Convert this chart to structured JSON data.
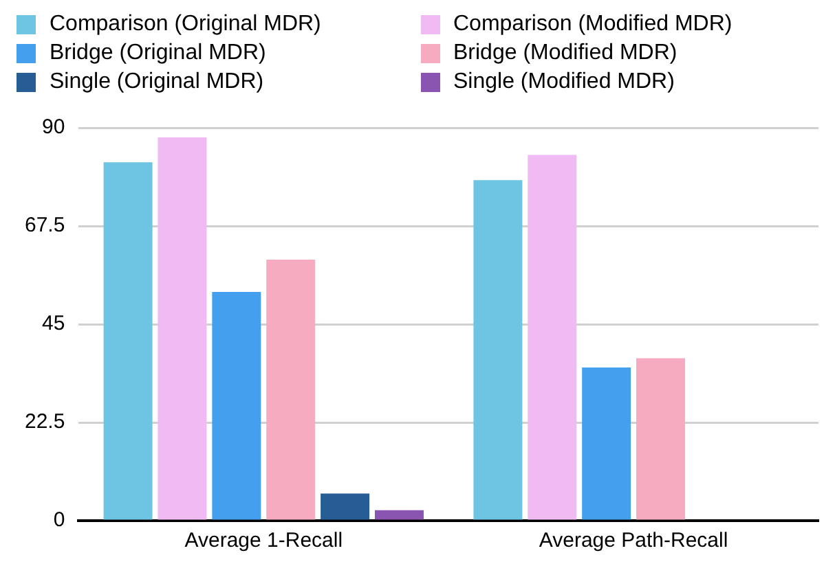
{
  "chart_data": {
    "type": "bar",
    "categories": [
      "Average 1-Recall",
      "Average Path-Recall"
    ],
    "series": [
      {
        "name": "Comparison (Original MDR)",
        "color": "#6ec5e3",
        "values": [
          82.1,
          78.0
        ]
      },
      {
        "name": "Comparison (Modified MDR)",
        "color": "#f0bbf2",
        "values": [
          87.8,
          83.8
        ]
      },
      {
        "name": "Bridge (Original MDR)",
        "color": "#44a0ee",
        "values": [
          52.4,
          35.1
        ]
      },
      {
        "name": "Bridge (Modified MDR)",
        "color": "#f7abc1",
        "values": [
          59.8,
          37.2
        ]
      },
      {
        "name": "Single (Original MDR)",
        "color": "#255d94",
        "values": [
          6.2,
          null
        ]
      },
      {
        "name": "Single (Modified MDR)",
        "color": "#8a55b0",
        "values": [
          2.4,
          null
        ]
      }
    ],
    "ylim": [
      0,
      90
    ],
    "yticks": [
      0,
      22.5,
      45,
      67.5,
      90
    ],
    "grid": "y",
    "legend": "top"
  }
}
